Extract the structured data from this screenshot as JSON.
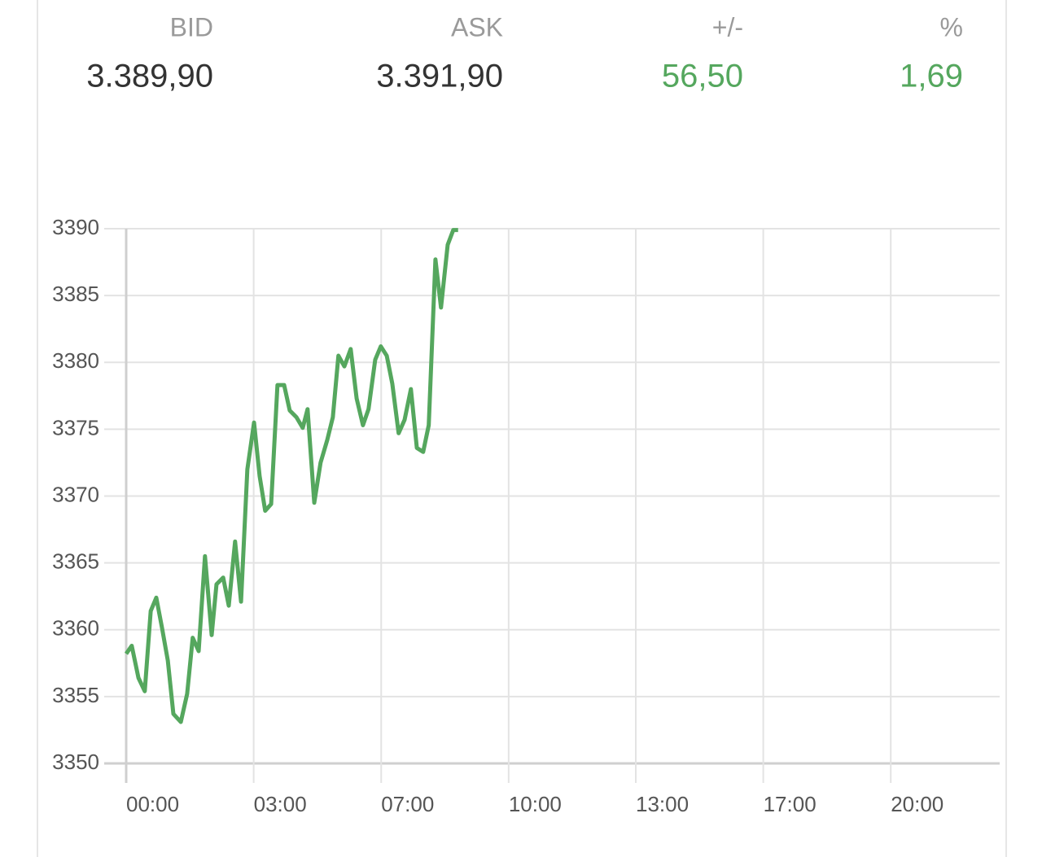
{
  "quote": {
    "columns": [
      {
        "label": "BID",
        "value": "3.389,90",
        "color": "#333333"
      },
      {
        "label": "ASK",
        "value": "3.391,90",
        "color": "#333333"
      },
      {
        "label": "+/-",
        "value": "56,50",
        "color": "#55a75e"
      },
      {
        "label": "%",
        "value": "1,69",
        "color": "#55a75e"
      }
    ]
  },
  "chart_data": {
    "type": "line",
    "x": [
      0,
      0.15,
      0.33,
      0.5,
      0.66,
      0.81,
      0.96,
      1.12,
      1.27,
      1.47,
      1.64,
      1.79,
      1.95,
      2.12,
      2.3,
      2.43,
      2.61,
      2.76,
      2.93,
      3.09,
      3.26,
      3.44,
      3.59,
      3.74,
      3.9,
      4.07,
      4.25,
      4.4,
      4.58,
      4.75,
      4.88,
      5.06,
      5.23,
      5.41,
      5.56,
      5.71,
      5.87,
      6.04,
      6.2,
      6.37,
      6.52,
      6.7,
      6.85,
      7.01,
      7.16,
      7.33,
      7.49,
      7.66,
      7.82,
      7.99,
      8.14,
      8.32,
      8.47,
      8.65,
      8.8,
      8.93
    ],
    "series": [
      {
        "color": "#55a75e",
        "values": [
          3358.2,
          3358.8,
          3356.4,
          3355.4,
          3361.4,
          3362.4,
          3360.2,
          3357.7,
          3353.7,
          3353.1,
          3355.2,
          3359.4,
          3358.4,
          3365.5,
          3359.6,
          3363.4,
          3363.9,
          3361.8,
          3366.6,
          3362.1,
          3372.0,
          3375.5,
          3371.5,
          3368.9,
          3369.4,
          3378.3,
          3378.3,
          3376.4,
          3375.9,
          3375.1,
          3376.5,
          3369.5,
          3372.5,
          3374.2,
          3375.9,
          3380.5,
          3379.7,
          3381.0,
          3377.3,
          3375.3,
          3376.5,
          3380.2,
          3381.2,
          3380.5,
          3378.4,
          3374.7,
          3375.7,
          3378.0,
          3373.6,
          3373.3,
          3375.3,
          3387.7,
          3384.1,
          3388.8,
          3389.9,
          3389.9
        ]
      }
    ],
    "xlim": [
      0,
      23.5
    ],
    "xticks": [
      {
        "value": 0,
        "label": "00:00"
      },
      {
        "value": 3.43,
        "label": "03:00"
      },
      {
        "value": 6.86,
        "label": "07:00"
      },
      {
        "value": 10.29,
        "label": "10:00"
      },
      {
        "value": 13.71,
        "label": "13:00"
      },
      {
        "value": 17.14,
        "label": "17:00"
      },
      {
        "value": 20.57,
        "label": "20:00"
      }
    ],
    "ylim": [
      3350,
      3390
    ],
    "yticks": [
      3350,
      3355,
      3360,
      3365,
      3370,
      3375,
      3380,
      3385,
      3390
    ],
    "grid": true
  }
}
